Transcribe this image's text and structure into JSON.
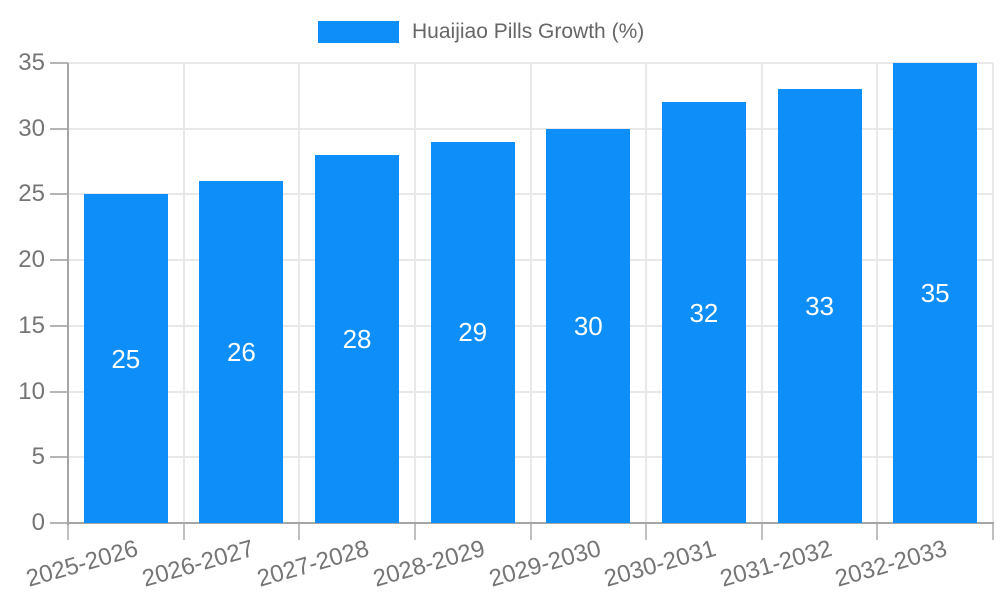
{
  "legend": {
    "label": "Huaijiao Pills Growth (%)",
    "text_color": "#666666"
  },
  "chart_data": {
    "type": "bar",
    "title": "Huaijiao Pills Growth (%)",
    "categories": [
      "2025-2026",
      "2026-2027",
      "2027-2028",
      "2028-2029",
      "2029-2030",
      "2030-2031",
      "2031-2032",
      "2032-2033"
    ],
    "values": [
      25,
      26,
      28,
      29,
      30,
      32,
      33,
      35
    ],
    "series_name": "Huaijiao Pills Growth (%)",
    "xlabel": "",
    "ylabel": "",
    "ylim": [
      0,
      35
    ],
    "yticks": [
      0,
      5,
      10,
      15,
      20,
      25,
      30,
      35
    ],
    "grid": true,
    "legend_position": "top-center",
    "bar_labels_inside": true,
    "bar_color": "#0d8ef8",
    "bar_label_color": "#ffffff",
    "axis_text_color": "#757575",
    "grid_color": "#e8e8e8",
    "axis_line_color": "#a6a6a6",
    "x_label_rotation_deg": -16
  }
}
